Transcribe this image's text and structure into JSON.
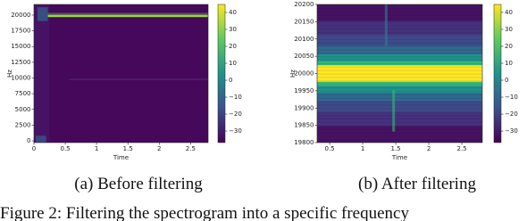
{
  "figure": {
    "panels": [
      {
        "xlabel": "Time",
        "ylabel": "Hz",
        "xlim": [
          0,
          2.78
        ],
        "ylim": [
          -280,
          21700
        ],
        "xticks": [
          0,
          0.5,
          1,
          1.5,
          2,
          2.5
        ],
        "yticks": [
          0,
          2500,
          5000,
          7500,
          10000,
          12500,
          15000,
          17500,
          20000
        ],
        "clim": [
          -36.8,
          44.7
        ],
        "cticks": [
          40,
          30,
          20,
          10,
          0,
          {
            "value": -10,
            "label": "−10"
          },
          {
            "value": -20,
            "label": "−20"
          },
          {
            "value": -30,
            "label": "−30"
          }
        ],
        "subcaption": "(a) Before filtering"
      },
      {
        "xlabel": "Time",
        "ylabel": "Hz",
        "xlim": [
          0.31,
          2.81
        ],
        "ylim": [
          19800,
          20200
        ],
        "xticks": [
          0.5,
          1,
          1.5,
          2,
          2.5
        ],
        "yticks": [
          19800,
          19850,
          19900,
          19950,
          20000,
          20050,
          20100,
          20150,
          20200
        ],
        "clim": [
          -36.8,
          44.7
        ],
        "cticks": [
          40,
          30,
          20,
          10,
          0,
          {
            "value": -10,
            "label": "−10"
          },
          {
            "value": -20,
            "label": "−20"
          },
          {
            "value": -30,
            "label": "−30"
          }
        ],
        "subcaption": "(b) After filtering"
      }
    ],
    "caption": "Figure 2: Filtering the spectrogram into a specific frequency"
  }
}
